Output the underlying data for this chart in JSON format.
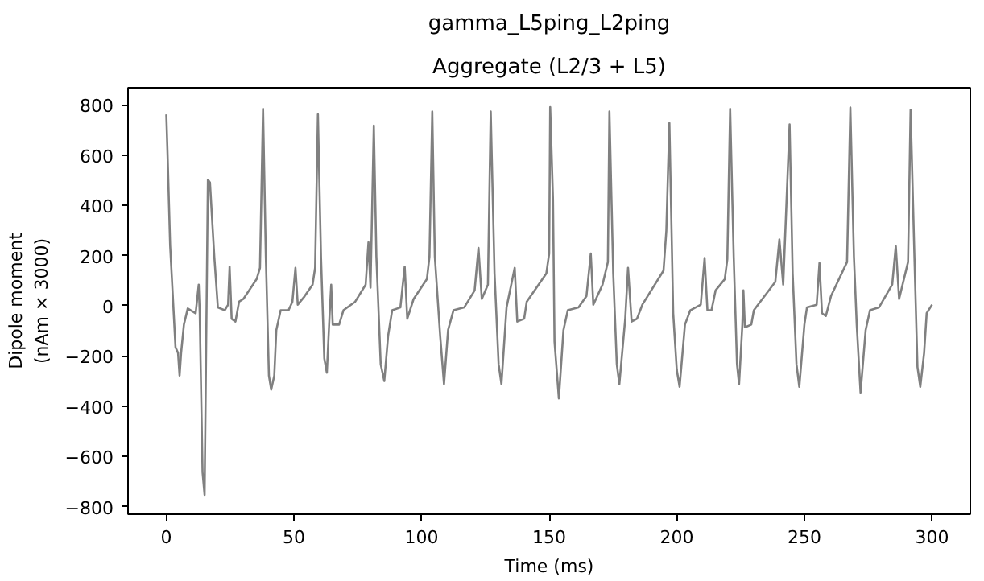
{
  "chart_data": {
    "type": "line",
    "title": "gamma_L5ping_L2ping",
    "subtitle": "Aggregate (L2/3 + L5)",
    "xlabel": "Time (ms)",
    "ylabel": "Dipole moment\n(nAm × 3000)",
    "x": [
      0,
      0.5,
      1.5,
      3.6,
      4.6,
      5.2,
      5.8,
      6.9,
      8.4,
      11.5,
      12.7,
      13.1,
      14.2,
      15,
      16.3,
      17.1,
      18.8,
      20.2,
      22.9,
      24.2,
      24.8,
      25.6,
      27.1,
      28.5,
      30.2,
      35.4,
      36.7,
      37.9,
      39,
      40.2,
      41.1,
      42.3,
      43.1,
      44.8,
      47.9,
      49.4,
      50.6,
      51.5,
      54.2,
      57.3,
      58.3,
      59.4,
      60.6,
      61.9,
      62.9,
      64,
      64.6,
      65.2,
      67.7,
      69.4,
      74,
      78.1,
      79.2,
      80,
      81.3,
      82.3,
      84,
      85.4,
      86.9,
      88.5,
      91.7,
      93.4,
      94.4,
      96.9,
      102.1,
      103.1,
      104.2,
      105.2,
      107.3,
      108.8,
      110.4,
      112.5,
      116.7,
      120.8,
      122.3,
      123.6,
      126,
      127.1,
      128.6,
      130.2,
      131.3,
      133.3,
      136.5,
      137.5,
      140.2,
      141.2,
      148.9,
      150,
      150.4,
      151.5,
      152.1,
      153.8,
      155.6,
      157.3,
      161.5,
      164.6,
      166.3,
      167.3,
      170.9,
      173,
      173.6,
      175.1,
      176.5,
      177.5,
      179.8,
      180.9,
      182.3,
      184.4,
      186.5,
      194.8,
      195.9,
      197.1,
      198.6,
      200,
      201.1,
      203.2,
      205.3,
      209.4,
      210.9,
      212,
      213.6,
      215.2,
      218.8,
      219.8,
      220.9,
      222.3,
      223.6,
      224.4,
      225.7,
      226.1,
      226.7,
      229.2,
      230.2,
      238.6,
      240.2,
      241.7,
      244.2,
      245.4,
      246.9,
      248,
      250,
      251,
      254.8,
      255.9,
      256.9,
      258.4,
      260.4,
      266.7,
      268,
      269.4,
      270.5,
      272,
      274,
      275.7,
      279.2,
      284.4,
      285.8,
      287.1,
      290.6,
      291.6,
      293.1,
      294.3,
      295.4,
      296.9,
      297.9,
      300
    ],
    "series": [
      {
        "color": "#808080",
        "values": [
          762,
          600,
          240,
          -165,
          -188,
          -278,
          -188,
          -75,
          -11,
          -30,
          84,
          -30,
          -663,
          -753,
          502,
          491,
          196,
          -7,
          -18,
          4,
          156,
          -52,
          -63,
          16,
          27,
          106,
          151,
          784,
          196,
          -278,
          -334,
          -278,
          -97,
          -18,
          -18,
          16,
          151,
          4,
          38,
          84,
          151,
          762,
          196,
          -210,
          -267,
          -30,
          84,
          -75,
          -75,
          -18,
          16,
          84,
          253,
          72,
          717,
          196,
          -233,
          -300,
          -120,
          -18,
          -7,
          156,
          -52,
          27,
          106,
          196,
          773,
          196,
          -120,
          -312,
          -97,
          -18,
          -7,
          61,
          230,
          27,
          84,
          773,
          129,
          -233,
          -312,
          -7,
          151,
          -63,
          -52,
          16,
          129,
          208,
          791,
          423,
          -143,
          -369,
          -97,
          -18,
          -7,
          38,
          208,
          4,
          84,
          174,
          773,
          129,
          -233,
          -312,
          -52,
          151,
          -63,
          -52,
          4,
          140,
          298,
          728,
          -30,
          -256,
          -323,
          -75,
          -18,
          4,
          190,
          -18,
          -18,
          61,
          106,
          185,
          784,
          196,
          -233,
          -312,
          -75,
          61,
          -86,
          -75,
          -18,
          95,
          264,
          84,
          722,
          129,
          -233,
          -323,
          -75,
          -7,
          4,
          170,
          -30,
          -41,
          38,
          174,
          789,
          196,
          -75,
          -346,
          -97,
          -18,
          -7,
          84,
          237,
          27,
          174,
          780,
          196,
          -244,
          -323,
          -188,
          -30,
          4
        ]
      }
    ],
    "xlim": [
      -15,
      315
    ],
    "ylim": [
      -830,
      868
    ],
    "xticks": [
      0,
      50,
      100,
      150,
      200,
      250,
      300
    ],
    "yticks": [
      -800,
      -600,
      -400,
      -200,
      0,
      200,
      400,
      600,
      800
    ],
    "grid": false,
    "marker": "none",
    "line_style": "solid"
  }
}
